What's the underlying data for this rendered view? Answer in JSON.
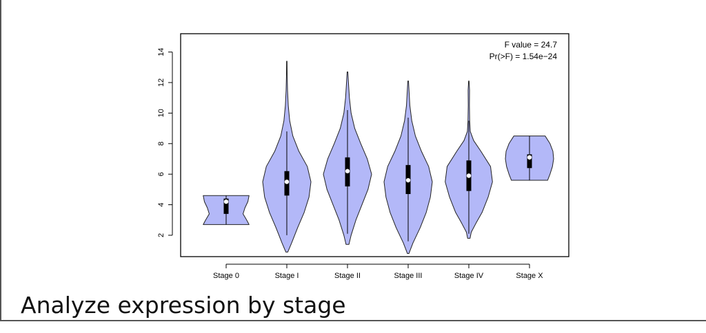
{
  "caption": "Analyze expression by stage",
  "colors": {
    "violin_fill": "#b3b8f8",
    "violin_stroke": "#222222",
    "box": "#000000",
    "median": "#ffffff"
  },
  "chart_data": {
    "type": "violin",
    "title": "",
    "xlabel": "",
    "ylabel": "",
    "ylim": [
      0.6,
      15.2
    ],
    "yticks": [
      2,
      4,
      6,
      8,
      10,
      12,
      14
    ],
    "grid": false,
    "legend": "none",
    "annotations": [
      "F value = 24.7",
      "Pr(>F) = 1.54e−24"
    ],
    "categories": [
      "Stage 0",
      "Stage I",
      "Stage II",
      "Stage III",
      "Stage IV",
      "Stage X"
    ],
    "series": [
      {
        "category": "Stage 0",
        "min": 2.7,
        "q1": 3.4,
        "median": 4.2,
        "q3": 4.4,
        "max": 4.6,
        "density": [
          [
            2.7,
            0.95
          ],
          [
            3.0,
            0.85
          ],
          [
            3.4,
            0.7
          ],
          [
            3.8,
            0.78
          ],
          [
            4.2,
            0.9
          ],
          [
            4.6,
            0.95
          ]
        ]
      },
      {
        "category": "Stage I",
        "min": 2.0,
        "q1": 4.6,
        "median": 5.5,
        "q3": 6.2,
        "max": 8.8,
        "density": [
          [
            0.9,
            0.04
          ],
          [
            1.5,
            0.2
          ],
          [
            2.5,
            0.45
          ],
          [
            3.5,
            0.72
          ],
          [
            4.5,
            0.92
          ],
          [
            5.5,
            1.0
          ],
          [
            6.5,
            0.85
          ],
          [
            7.5,
            0.5
          ],
          [
            8.5,
            0.25
          ],
          [
            9.5,
            0.12
          ],
          [
            10.5,
            0.06
          ],
          [
            11.5,
            0.03
          ],
          [
            12.5,
            0.015
          ],
          [
            13.4,
            0.01
          ]
        ]
      },
      {
        "category": "Stage II",
        "min": 2.1,
        "q1": 5.2,
        "median": 6.2,
        "q3": 7.1,
        "max": 10.2,
        "density": [
          [
            1.4,
            0.06
          ],
          [
            2.0,
            0.15
          ],
          [
            3.0,
            0.35
          ],
          [
            4.0,
            0.6
          ],
          [
            5.0,
            0.85
          ],
          [
            6.0,
            1.0
          ],
          [
            7.0,
            0.82
          ],
          [
            8.0,
            0.55
          ],
          [
            9.0,
            0.3
          ],
          [
            10.0,
            0.15
          ],
          [
            11.0,
            0.08
          ],
          [
            12.0,
            0.04
          ],
          [
            12.7,
            0.015
          ]
        ]
      },
      {
        "category": "Stage III",
        "min": 1.6,
        "q1": 4.7,
        "median": 5.6,
        "q3": 6.6,
        "max": 9.7,
        "density": [
          [
            0.8,
            0.03
          ],
          [
            1.5,
            0.2
          ],
          [
            2.5,
            0.5
          ],
          [
            3.5,
            0.75
          ],
          [
            4.5,
            0.92
          ],
          [
            5.5,
            1.0
          ],
          [
            6.5,
            0.85
          ],
          [
            7.5,
            0.55
          ],
          [
            8.5,
            0.3
          ],
          [
            9.5,
            0.15
          ],
          [
            10.5,
            0.07
          ],
          [
            11.5,
            0.035
          ],
          [
            12.1,
            0.015
          ]
        ]
      },
      {
        "category": "Stage IV",
        "min": 2.1,
        "q1": 4.9,
        "median": 5.9,
        "q3": 6.9,
        "max": 9.5,
        "density": [
          [
            1.8,
            0.05
          ],
          [
            2.2,
            0.1
          ],
          [
            2.8,
            0.3
          ],
          [
            3.5,
            0.55
          ],
          [
            4.5,
            0.8
          ],
          [
            5.5,
            0.98
          ],
          [
            6.5,
            0.9
          ],
          [
            7.5,
            0.5
          ],
          [
            8.2,
            0.2
          ],
          [
            8.8,
            0.06
          ],
          [
            9.5,
            0.035
          ],
          [
            10.5,
            0.025
          ],
          [
            11.5,
            0.03
          ],
          [
            12.1,
            0.01
          ]
        ]
      },
      {
        "category": "Stage X",
        "min": 5.6,
        "q1": 6.4,
        "median": 7.1,
        "q3": 7.3,
        "max": 8.5,
        "density": [
          [
            5.6,
            0.75
          ],
          [
            6.0,
            0.85
          ],
          [
            6.5,
            0.95
          ],
          [
            7.0,
            1.0
          ],
          [
            7.5,
            0.97
          ],
          [
            8.0,
            0.85
          ],
          [
            8.5,
            0.65
          ]
        ]
      }
    ]
  }
}
